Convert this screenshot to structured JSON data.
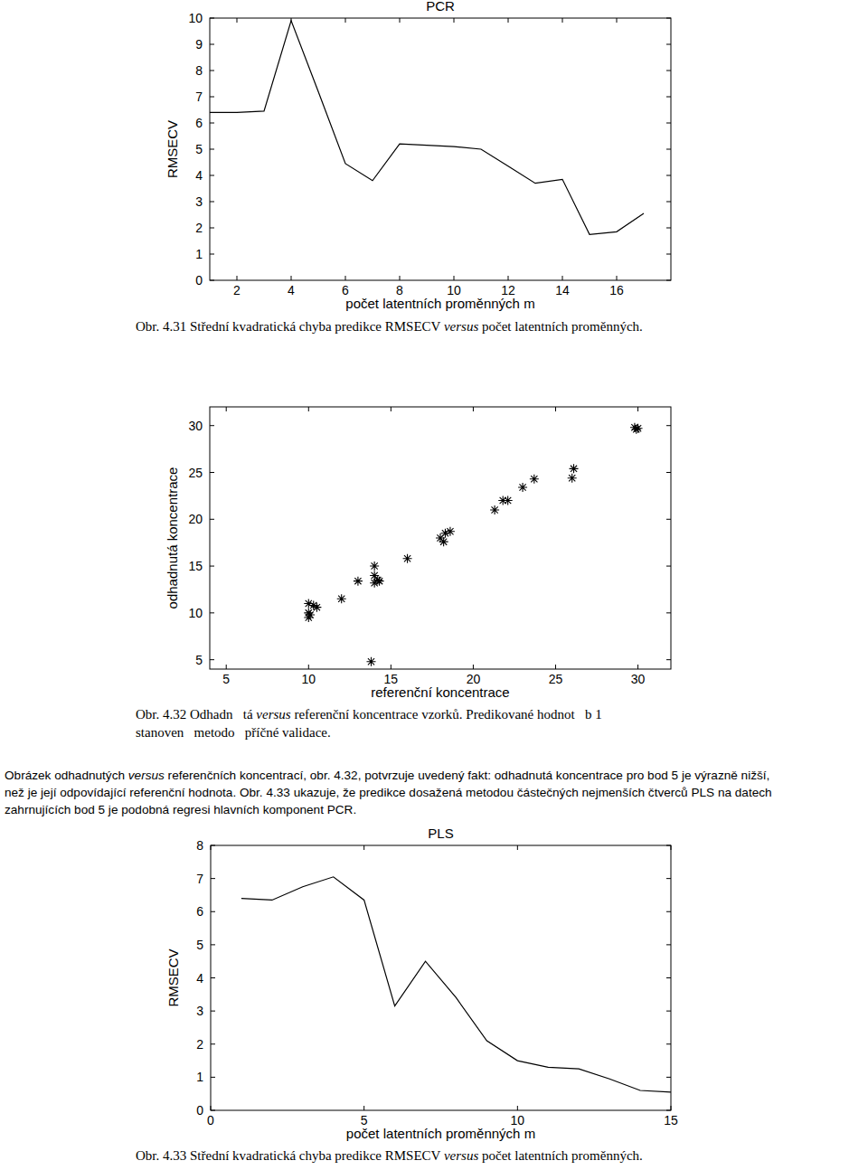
{
  "chart_data": [
    {
      "type": "line",
      "title": "PCR",
      "x_label": "počet latentních proměnných m",
      "y_label": "RMSECV",
      "x": [
        1,
        2,
        3,
        4,
        5,
        6,
        7,
        8,
        9,
        10,
        11,
        12,
        13,
        14,
        15,
        16,
        17
      ],
      "values": [
        6.4,
        6.4,
        6.45,
        9.9,
        7.2,
        4.45,
        3.8,
        5.2,
        5.15,
        5.1,
        5.0,
        4.35,
        3.7,
        3.85,
        1.75,
        1.85,
        2.55
      ],
      "color": "#000000",
      "line_style": "solid",
      "grid": false,
      "xlim": [
        1,
        18
      ],
      "xticks": [
        2,
        4,
        6,
        8,
        10,
        12,
        14,
        16
      ],
      "ylim": [
        0,
        10
      ],
      "yticks": [
        0,
        1,
        2,
        3,
        4,
        5,
        6,
        7,
        8,
        9,
        10
      ]
    },
    {
      "type": "scatter",
      "x_label": "referenční koncentrace",
      "y_label": "odhadnutá koncentrace",
      "x": [
        10,
        10.3,
        10.5,
        10,
        10.1,
        10,
        12,
        13,
        14,
        14,
        14.2,
        14,
        14.3,
        13.8,
        16,
        18,
        18.2,
        18.3,
        18.6,
        21.3,
        21.8,
        22.1,
        23,
        23.7,
        26,
        26.1,
        29.9,
        29.8,
        30
      ],
      "values": [
        11,
        10.8,
        10.6,
        10,
        9.8,
        9.5,
        11.5,
        13.4,
        15,
        14,
        13.5,
        13.2,
        13.4,
        4.8,
        15.8,
        18,
        17.6,
        18.5,
        18.7,
        21,
        22,
        22,
        23.4,
        24.3,
        24.4,
        25.4,
        29.6,
        29.8,
        29.7
      ],
      "color": "#000000",
      "marker": "asterisk",
      "line_style": "none",
      "grid": false,
      "xlim": [
        4,
        32
      ],
      "xticks": [
        5,
        10,
        15,
        20,
        25,
        30
      ],
      "ylim": [
        4,
        32
      ],
      "yticks": [
        5,
        10,
        15,
        20,
        25,
        30
      ]
    },
    {
      "type": "line",
      "title": "PLS",
      "x_label": "počet latentních proměnných m",
      "y_label": "RMSECV",
      "x": [
        1,
        2,
        3,
        4,
        5,
        6,
        7,
        8,
        9,
        10,
        11,
        12,
        13,
        14,
        15
      ],
      "values": [
        6.4,
        6.35,
        6.75,
        7.05,
        6.35,
        3.15,
        4.5,
        3.4,
        2.1,
        1.5,
        1.3,
        1.25,
        0.95,
        0.6,
        0.55
      ],
      "color": "#000000",
      "line_style": "solid",
      "grid": false,
      "xlim": [
        0,
        15
      ],
      "xticks": [
        0,
        5,
        10,
        15
      ],
      "ylim": [
        0,
        8
      ],
      "yticks": [
        0,
        1,
        2,
        3,
        4,
        5,
        6,
        7,
        8
      ]
    }
  ],
  "captions": [
    [
      [
        {
          "text": "Obr. 4.31 Střední kvadratická chyba predikce RMSECV "
        },
        {
          "text": "versus",
          "em": true
        },
        {
          "text": " počet latentních proměnných."
        }
      ]
    ],
    [
      [
        {
          "text": "Obr. 4.32 Odhadn   tá "
        },
        {
          "text": "versus",
          "em": true
        },
        {
          "text": " referenční koncentrace vzorků. Predikované hodnot   b 1"
        }
      ],
      [
        {
          "text": "stanoven   metodo   příčné validace."
        }
      ]
    ],
    [
      [
        {
          "text": "Obr. 4.33 Střední kvadratická chyba predikce RMSECV "
        },
        {
          "text": "versus",
          "em": true
        },
        {
          "text": " počet latentních proměnných."
        }
      ]
    ]
  ],
  "paragraph": [
    [
      {
        "text": "Obrázek odhadnutých "
      },
      {
        "text": "versus",
        "em": true
      },
      {
        "text": " referenčních koncentrací, obr. 4.32, potvrzuje uvedený fakt: odhadnutá koncentrace pro bod 5 je výrazně nižší,"
      }
    ],
    [
      {
        "text": "než je její odpovídající referenční hodnota. Obr. 4.33 ukazuje, že predikce dosažená metodou částečných nejmenších čtverců PLS na datech"
      }
    ],
    [
      {
        "text": "zahrnujících bod 5 je podobná regresi hlavních komponent PCR."
      }
    ]
  ]
}
